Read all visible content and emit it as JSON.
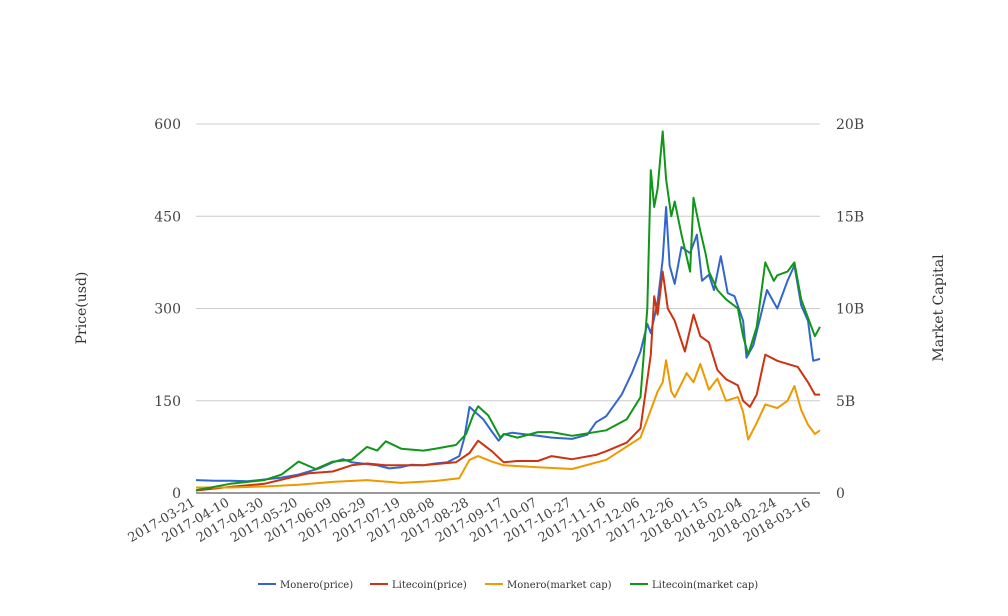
{
  "chart_data": {
    "type": "line",
    "title": "",
    "y_left": {
      "label": "Price(usd)",
      "range": [
        0,
        600
      ],
      "ticks": [
        "0",
        "150",
        "300",
        "450",
        "600"
      ]
    },
    "y_right": {
      "label": "Market Capital",
      "range": [
        0,
        20000000000
      ],
      "ticks": [
        "0",
        "5B",
        "10B",
        "15B",
        "20B"
      ]
    },
    "x_ticks": [
      "2017-03-21",
      "2017-04-10",
      "2017-04-30",
      "2017-05-20",
      "2017-06-09",
      "2017-06-29",
      "2017-07-19",
      "2017-08-08",
      "2017-08-28",
      "2017-09-17",
      "2017-10-07",
      "2017-10-27",
      "2017-11-16",
      "2017-12-06",
      "2017-12-26",
      "2018-01-15",
      "2018-02-04",
      "2018-02-24",
      "2018-03-16"
    ],
    "x_range": [
      "2017-03-21",
      "2018-03-21"
    ],
    "grid": true,
    "legend_position": "bottom",
    "series": [
      {
        "name": "Monero(price)",
        "axis": "left",
        "color": "#3366cc",
        "points": [
          [
            "2017-03-21",
            21
          ],
          [
            "2017-04-01",
            20
          ],
          [
            "2017-04-10",
            20
          ],
          [
            "2017-04-20",
            19
          ],
          [
            "2017-04-30",
            22
          ],
          [
            "2017-05-10",
            25
          ],
          [
            "2017-05-20",
            30
          ],
          [
            "2017-06-01",
            40
          ],
          [
            "2017-06-09",
            50
          ],
          [
            "2017-06-15",
            55
          ],
          [
            "2017-06-20",
            50
          ],
          [
            "2017-06-29",
            47
          ],
          [
            "2017-07-05",
            45
          ],
          [
            "2017-07-12",
            40
          ],
          [
            "2017-07-19",
            42
          ],
          [
            "2017-07-25",
            46
          ],
          [
            "2017-08-01",
            45
          ],
          [
            "2017-08-08",
            48
          ],
          [
            "2017-08-15",
            50
          ],
          [
            "2017-08-22",
            60
          ],
          [
            "2017-08-25",
            90
          ],
          [
            "2017-08-28",
            140
          ],
          [
            "2017-09-01",
            130
          ],
          [
            "2017-09-05",
            120
          ],
          [
            "2017-09-10",
            100
          ],
          [
            "2017-09-14",
            85
          ],
          [
            "2017-09-17",
            95
          ],
          [
            "2017-09-22",
            98
          ],
          [
            "2017-10-01",
            95
          ],
          [
            "2017-10-07",
            93
          ],
          [
            "2017-10-15",
            90
          ],
          [
            "2017-10-27",
            88
          ],
          [
            "2017-11-05",
            95
          ],
          [
            "2017-11-10",
            115
          ],
          [
            "2017-11-16",
            125
          ],
          [
            "2017-11-25",
            160
          ],
          [
            "2017-12-01",
            195
          ],
          [
            "2017-12-06",
            230
          ],
          [
            "2017-12-10",
            275
          ],
          [
            "2017-12-12",
            260
          ],
          [
            "2017-12-16",
            310
          ],
          [
            "2017-12-19",
            380
          ],
          [
            "2017-12-21",
            465
          ],
          [
            "2017-12-23",
            370
          ],
          [
            "2017-12-26",
            340
          ],
          [
            "2017-12-30",
            400
          ],
          [
            "2018-01-04",
            390
          ],
          [
            "2018-01-08",
            420
          ],
          [
            "2018-01-11",
            345
          ],
          [
            "2018-01-15",
            355
          ],
          [
            "2018-01-18",
            330
          ],
          [
            "2018-01-22",
            385
          ],
          [
            "2018-01-26",
            325
          ],
          [
            "2018-01-30",
            320
          ],
          [
            "2018-02-04",
            280
          ],
          [
            "2018-02-06",
            220
          ],
          [
            "2018-02-10",
            240
          ],
          [
            "2018-02-14",
            285
          ],
          [
            "2018-02-18",
            330
          ],
          [
            "2018-02-22",
            310
          ],
          [
            "2018-02-24",
            300
          ],
          [
            "2018-03-02",
            345
          ],
          [
            "2018-03-06",
            370
          ],
          [
            "2018-03-10",
            305
          ],
          [
            "2018-03-14",
            280
          ],
          [
            "2018-03-17",
            215
          ],
          [
            "2018-03-21",
            218
          ]
        ]
      },
      {
        "name": "Litecoin(price)",
        "axis": "left",
        "color": "#cc3311",
        "points": [
          [
            "2017-03-21",
            4
          ],
          [
            "2017-04-10",
            10
          ],
          [
            "2017-04-30",
            15
          ],
          [
            "2017-05-15",
            25
          ],
          [
            "2017-05-26",
            32
          ],
          [
            "2017-06-09",
            35
          ],
          [
            "2017-06-20",
            45
          ],
          [
            "2017-06-29",
            48
          ],
          [
            "2017-07-10",
            45
          ],
          [
            "2017-07-19",
            45
          ],
          [
            "2017-08-01",
            45
          ],
          [
            "2017-08-08",
            47
          ],
          [
            "2017-08-20",
            50
          ],
          [
            "2017-08-28",
            65
          ],
          [
            "2017-09-02",
            85
          ],
          [
            "2017-09-10",
            68
          ],
          [
            "2017-09-17",
            50
          ],
          [
            "2017-09-25",
            52
          ],
          [
            "2017-10-07",
            52
          ],
          [
            "2017-10-15",
            60
          ],
          [
            "2017-10-27",
            55
          ],
          [
            "2017-11-10",
            62
          ],
          [
            "2017-11-16",
            68
          ],
          [
            "2017-11-28",
            82
          ],
          [
            "2017-12-06",
            105
          ],
          [
            "2017-12-12",
            225
          ],
          [
            "2017-12-14",
            320
          ],
          [
            "2017-12-16",
            290
          ],
          [
            "2017-12-19",
            360
          ],
          [
            "2017-12-22",
            300
          ],
          [
            "2017-12-26",
            280
          ],
          [
            "2018-01-01",
            230
          ],
          [
            "2018-01-06",
            290
          ],
          [
            "2018-01-10",
            255
          ],
          [
            "2018-01-15",
            245
          ],
          [
            "2018-01-20",
            200
          ],
          [
            "2018-01-25",
            185
          ],
          [
            "2018-02-01",
            175
          ],
          [
            "2018-02-04",
            150
          ],
          [
            "2018-02-08",
            140
          ],
          [
            "2018-02-12",
            160
          ],
          [
            "2018-02-17",
            225
          ],
          [
            "2018-02-24",
            215
          ],
          [
            "2018-03-02",
            210
          ],
          [
            "2018-03-08",
            205
          ],
          [
            "2018-03-14",
            180
          ],
          [
            "2018-03-18",
            160
          ],
          [
            "2018-03-21",
            160
          ]
        ]
      },
      {
        "name": "Monero(market cap)",
        "axis": "right",
        "color": "#ee9900",
        "points": [
          [
            "2017-03-21",
            300000000
          ],
          [
            "2017-04-10",
            300000000
          ],
          [
            "2017-04-30",
            350000000
          ],
          [
            "2017-05-20",
            450000000
          ],
          [
            "2017-06-09",
            600000000
          ],
          [
            "2017-06-29",
            700000000
          ],
          [
            "2017-07-19",
            550000000
          ],
          [
            "2017-08-08",
            650000000
          ],
          [
            "2017-08-22",
            800000000
          ],
          [
            "2017-08-28",
            1800000000
          ],
          [
            "2017-09-02",
            2000000000
          ],
          [
            "2017-09-10",
            1700000000
          ],
          [
            "2017-09-17",
            1500000000
          ],
          [
            "2017-10-07",
            1400000000
          ],
          [
            "2017-10-27",
            1300000000
          ],
          [
            "2017-11-16",
            1800000000
          ],
          [
            "2017-12-06",
            3000000000
          ],
          [
            "2017-12-12",
            4500000000
          ],
          [
            "2017-12-16",
            5500000000
          ],
          [
            "2017-12-19",
            6000000000
          ],
          [
            "2017-12-21",
            7200000000
          ],
          [
            "2017-12-24",
            5500000000
          ],
          [
            "2017-12-26",
            5200000000
          ],
          [
            "2018-01-02",
            6500000000
          ],
          [
            "2018-01-06",
            6000000000
          ],
          [
            "2018-01-10",
            7000000000
          ],
          [
            "2018-01-15",
            5600000000
          ],
          [
            "2018-01-20",
            6200000000
          ],
          [
            "2018-01-25",
            5000000000
          ],
          [
            "2018-02-01",
            5200000000
          ],
          [
            "2018-02-04",
            4400000000
          ],
          [
            "2018-02-07",
            2900000000
          ],
          [
            "2018-02-12",
            3800000000
          ],
          [
            "2018-02-17",
            4800000000
          ],
          [
            "2018-02-24",
            4600000000
          ],
          [
            "2018-03-02",
            5000000000
          ],
          [
            "2018-03-06",
            5800000000
          ],
          [
            "2018-03-10",
            4500000000
          ],
          [
            "2018-03-14",
            3700000000
          ],
          [
            "2018-03-18",
            3200000000
          ],
          [
            "2018-03-21",
            3400000000
          ]
        ]
      },
      {
        "name": "Litecoin(market cap)",
        "axis": "right",
        "color": "#109618",
        "points": [
          [
            "2017-03-21",
            150000000
          ],
          [
            "2017-04-10",
            500000000
          ],
          [
            "2017-04-30",
            700000000
          ],
          [
            "2017-05-10",
            1000000000
          ],
          [
            "2017-05-20",
            1700000000
          ],
          [
            "2017-05-30",
            1300000000
          ],
          [
            "2017-06-09",
            1700000000
          ],
          [
            "2017-06-20",
            1800000000
          ],
          [
            "2017-06-29",
            2500000000
          ],
          [
            "2017-07-05",
            2300000000
          ],
          [
            "2017-07-10",
            2800000000
          ],
          [
            "2017-07-19",
            2400000000
          ],
          [
            "2017-08-01",
            2300000000
          ],
          [
            "2017-08-08",
            2400000000
          ],
          [
            "2017-08-20",
            2600000000
          ],
          [
            "2017-08-26",
            3200000000
          ],
          [
            "2017-08-30",
            4200000000
          ],
          [
            "2017-09-02",
            4700000000
          ],
          [
            "2017-09-08",
            4200000000
          ],
          [
            "2017-09-15",
            3000000000
          ],
          [
            "2017-09-17",
            3200000000
          ],
          [
            "2017-09-25",
            3000000000
          ],
          [
            "2017-10-07",
            3300000000
          ],
          [
            "2017-10-15",
            3300000000
          ],
          [
            "2017-10-27",
            3100000000
          ],
          [
            "2017-11-16",
            3400000000
          ],
          [
            "2017-11-28",
            4000000000
          ],
          [
            "2017-12-06",
            5200000000
          ],
          [
            "2017-12-10",
            10000000000
          ],
          [
            "2017-12-12",
            17500000000
          ],
          [
            "2017-12-14",
            15500000000
          ],
          [
            "2017-12-16",
            16500000000
          ],
          [
            "2017-12-19",
            19600000000
          ],
          [
            "2017-12-21",
            17000000000
          ],
          [
            "2017-12-24",
            15000000000
          ],
          [
            "2017-12-26",
            15800000000
          ],
          [
            "2017-12-30",
            14000000000
          ],
          [
            "2018-01-04",
            12000000000
          ],
          [
            "2018-01-06",
            16000000000
          ],
          [
            "2018-01-10",
            14200000000
          ],
          [
            "2018-01-13",
            13000000000
          ],
          [
            "2018-01-15",
            12000000000
          ],
          [
            "2018-01-20",
            11000000000
          ],
          [
            "2018-01-25",
            10500000000
          ],
          [
            "2018-02-01",
            10000000000
          ],
          [
            "2018-02-04",
            8500000000
          ],
          [
            "2018-02-07",
            7500000000
          ],
          [
            "2018-02-12",
            9000000000
          ],
          [
            "2018-02-17",
            12500000000
          ],
          [
            "2018-02-22",
            11500000000
          ],
          [
            "2018-02-24",
            11800000000
          ],
          [
            "2018-03-02",
            12000000000
          ],
          [
            "2018-03-06",
            12500000000
          ],
          [
            "2018-03-10",
            10500000000
          ],
          [
            "2018-03-14",
            9500000000
          ],
          [
            "2018-03-18",
            8500000000
          ],
          [
            "2018-03-21",
            9000000000
          ]
        ]
      }
    ]
  }
}
